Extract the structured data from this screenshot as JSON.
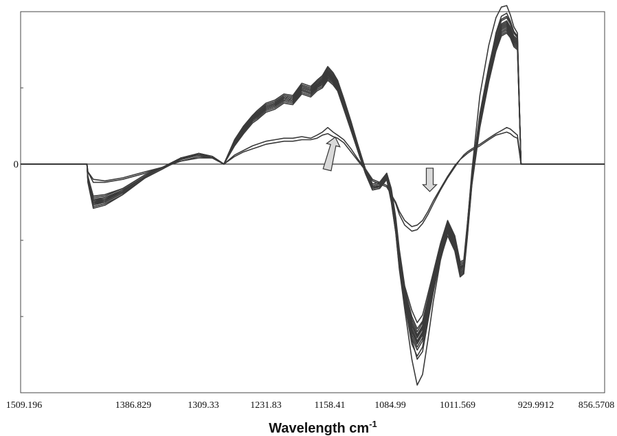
{
  "chart_data": {
    "type": "line",
    "title": "",
    "xlabel": "Wavelength cm",
    "xlabel_superscript": "-1",
    "ylabel": "",
    "x_reversed": true,
    "xlim": [
      1509.196,
      856.5708
    ],
    "ylim": [
      -1.5,
      1.0
    ],
    "x_tick_labels": [
      "1509.196",
      "1386.829",
      "1309.33",
      "1231.83",
      "1158.41",
      "1084.99",
      "1011.569",
      "929.9912",
      "856.5708"
    ],
    "y_tick_labels": [
      "0"
    ],
    "grid": false,
    "legend": "none",
    "line_color": "#3a3a3a",
    "baseline_color": "#333333",
    "annotations": [
      {
        "name": "arrow-up",
        "direction": "up",
        "x": 1160,
        "y": 0.12
      },
      {
        "name": "arrow-down",
        "direction": "down",
        "x": 1052,
        "y": -0.18
      }
    ],
    "profile_x": [
      1509.2,
      1435,
      1434,
      1428,
      1415,
      1395,
      1370,
      1350,
      1330,
      1310,
      1295,
      1282,
      1270,
      1260,
      1250,
      1245,
      1235,
      1225,
      1215,
      1205,
      1195,
      1185,
      1178,
      1172,
      1166,
      1160,
      1155,
      1148,
      1140,
      1132,
      1124,
      1116,
      1108,
      1100,
      1095,
      1090,
      1086,
      1080,
      1072,
      1066,
      1060,
      1054,
      1048,
      1040,
      1032,
      1024,
      1018,
      1014,
      1010,
      1005,
      996,
      986,
      978,
      972,
      966,
      962,
      958,
      954,
      950,
      856.6
    ],
    "series": [
      {
        "values": [
          0,
          0,
          -0.09,
          -0.26,
          -0.24,
          -0.18,
          -0.08,
          -0.02,
          0.04,
          0.07,
          0.05,
          0.0,
          0.15,
          0.23,
          0.3,
          0.32,
          0.37,
          0.39,
          0.43,
          0.42,
          0.5,
          0.48,
          0.52,
          0.55,
          0.6,
          0.56,
          0.52,
          0.4,
          0.25,
          0.1,
          -0.05,
          -0.15,
          -0.14,
          -0.08,
          -0.2,
          -0.4,
          -0.62,
          -0.86,
          -1.06,
          -1.14,
          -1.08,
          -0.92,
          -0.76,
          -0.55,
          -0.4,
          -0.5,
          -0.68,
          -0.66,
          -0.42,
          -0.1,
          0.3,
          0.6,
          0.8,
          0.9,
          0.92,
          0.88,
          0.82,
          0.8,
          0,
          0
        ]
      },
      {
        "values": [
          0,
          0,
          -0.1,
          -0.27,
          -0.25,
          -0.19,
          -0.09,
          -0.03,
          0.04,
          0.06,
          0.05,
          0.0,
          0.14,
          0.22,
          0.29,
          0.31,
          0.36,
          0.38,
          0.42,
          0.41,
          0.48,
          0.46,
          0.5,
          0.52,
          0.57,
          0.54,
          0.5,
          0.38,
          0.24,
          0.09,
          -0.05,
          -0.16,
          -0.15,
          -0.09,
          -0.22,
          -0.42,
          -0.64,
          -0.88,
          -1.08,
          -1.16,
          -1.1,
          -0.94,
          -0.78,
          -0.57,
          -0.42,
          -0.52,
          -0.69,
          -0.67,
          -0.44,
          -0.11,
          0.28,
          0.58,
          0.78,
          0.88,
          0.9,
          0.86,
          0.8,
          0.78,
          0,
          0
        ]
      },
      {
        "values": [
          0,
          0,
          -0.09,
          -0.25,
          -0.23,
          -0.18,
          -0.08,
          -0.02,
          0.03,
          0.07,
          0.05,
          0.0,
          0.15,
          0.24,
          0.31,
          0.33,
          0.38,
          0.4,
          0.44,
          0.43,
          0.51,
          0.49,
          0.53,
          0.56,
          0.61,
          0.57,
          0.53,
          0.41,
          0.26,
          0.11,
          -0.04,
          -0.14,
          -0.13,
          -0.07,
          -0.19,
          -0.38,
          -0.6,
          -0.84,
          -1.04,
          -1.12,
          -1.06,
          -0.9,
          -0.74,
          -0.54,
          -0.39,
          -0.49,
          -0.66,
          -0.65,
          -0.41,
          -0.09,
          0.31,
          0.61,
          0.81,
          0.91,
          0.93,
          0.89,
          0.83,
          0.81,
          0,
          0
        ]
      },
      {
        "values": [
          0,
          0,
          -0.11,
          -0.28,
          -0.26,
          -0.2,
          -0.09,
          -0.03,
          0.04,
          0.07,
          0.05,
          0.0,
          0.13,
          0.21,
          0.28,
          0.3,
          0.35,
          0.37,
          0.41,
          0.4,
          0.47,
          0.45,
          0.49,
          0.51,
          0.56,
          0.53,
          0.49,
          0.37,
          0.23,
          0.08,
          -0.06,
          -0.17,
          -0.16,
          -0.1,
          -0.24,
          -0.44,
          -0.66,
          -0.9,
          -1.12,
          -1.2,
          -1.14,
          -0.97,
          -0.8,
          -0.59,
          -0.44,
          -0.54,
          -0.71,
          -0.69,
          -0.46,
          -0.13,
          0.26,
          0.56,
          0.76,
          0.86,
          0.88,
          0.85,
          0.79,
          0.77,
          0,
          0
        ]
      },
      {
        "values": [
          0,
          0,
          -0.08,
          -0.22,
          -0.21,
          -0.16,
          -0.07,
          -0.02,
          0.04,
          0.07,
          0.05,
          0.0,
          0.15,
          0.24,
          0.31,
          0.34,
          0.39,
          0.41,
          0.45,
          0.44,
          0.52,
          0.5,
          0.54,
          0.57,
          0.62,
          0.58,
          0.54,
          0.42,
          0.27,
          0.12,
          -0.03,
          -0.13,
          -0.12,
          -0.06,
          -0.17,
          -0.36,
          -0.58,
          -0.82,
          -1.0,
          -1.08,
          -1.03,
          -0.88,
          -0.73,
          -0.53,
          -0.38,
          -0.48,
          -0.65,
          -0.64,
          -0.4,
          -0.08,
          0.32,
          0.62,
          0.82,
          0.92,
          0.94,
          0.9,
          0.84,
          0.82,
          0,
          0
        ]
      },
      {
        "values": [
          0,
          0,
          -0.1,
          -0.24,
          -0.23,
          -0.17,
          -0.08,
          -0.02,
          0.03,
          0.06,
          0.04,
          0.0,
          0.14,
          0.23,
          0.3,
          0.32,
          0.37,
          0.39,
          0.43,
          0.42,
          0.49,
          0.47,
          0.51,
          0.54,
          0.58,
          0.55,
          0.51,
          0.39,
          0.25,
          0.1,
          -0.05,
          -0.15,
          -0.14,
          -0.08,
          -0.21,
          -0.41,
          -0.63,
          -0.87,
          -1.1,
          -1.18,
          -1.12,
          -0.95,
          -0.79,
          -0.58,
          -0.43,
          -0.53,
          -0.7,
          -0.68,
          -0.45,
          -0.12,
          0.27,
          0.57,
          0.77,
          0.87,
          0.89,
          0.86,
          0.8,
          0.78,
          0,
          0
        ]
      },
      {
        "values": [
          0,
          0,
          -0.09,
          -0.23,
          -0.22,
          -0.17,
          -0.08,
          -0.02,
          0.04,
          0.07,
          0.05,
          0.0,
          0.16,
          0.25,
          0.32,
          0.34,
          0.39,
          0.41,
          0.45,
          0.44,
          0.52,
          0.5,
          0.55,
          0.58,
          0.63,
          0.59,
          0.55,
          0.42,
          0.27,
          0.11,
          -0.04,
          -0.14,
          -0.13,
          -0.07,
          -0.2,
          -0.4,
          -0.61,
          -0.85,
          -1.02,
          -1.1,
          -1.04,
          -0.89,
          -0.74,
          -0.54,
          -0.39,
          -0.49,
          -0.66,
          -0.65,
          -0.41,
          -0.09,
          0.32,
          0.63,
          0.84,
          0.94,
          0.96,
          0.92,
          0.86,
          0.83,
          0,
          0
        ]
      },
      {
        "values": [
          0,
          0,
          -0.11,
          -0.26,
          -0.24,
          -0.18,
          -0.08,
          -0.02,
          0.04,
          0.06,
          0.05,
          0.0,
          0.13,
          0.22,
          0.29,
          0.31,
          0.36,
          0.38,
          0.42,
          0.41,
          0.48,
          0.46,
          0.5,
          0.53,
          0.57,
          0.54,
          0.5,
          0.38,
          0.24,
          0.09,
          -0.05,
          -0.16,
          -0.15,
          -0.09,
          -0.23,
          -0.43,
          -0.65,
          -0.89,
          -1.14,
          -1.22,
          -1.16,
          -0.98,
          -0.81,
          -0.6,
          -0.45,
          -0.55,
          -0.72,
          -0.7,
          -0.47,
          -0.13,
          0.25,
          0.55,
          0.75,
          0.85,
          0.87,
          0.84,
          0.78,
          0.76,
          0,
          0
        ]
      },
      {
        "values": [
          0,
          0,
          -0.12,
          -0.29,
          -0.27,
          -0.2,
          -0.09,
          -0.03,
          0.03,
          0.06,
          0.04,
          0.0,
          0.12,
          0.2,
          0.27,
          0.29,
          0.34,
          0.36,
          0.4,
          0.39,
          0.46,
          0.44,
          0.48,
          0.5,
          0.55,
          0.52,
          0.48,
          0.36,
          0.22,
          0.08,
          -0.06,
          -0.17,
          -0.16,
          -0.1,
          -0.25,
          -0.45,
          -0.68,
          -0.92,
          -1.18,
          -1.26,
          -1.2,
          -1.01,
          -0.83,
          -0.62,
          -0.47,
          -0.57,
          -0.74,
          -0.72,
          -0.48,
          -0.14,
          0.24,
          0.54,
          0.74,
          0.84,
          0.86,
          0.83,
          0.77,
          0.75,
          0,
          0
        ]
      },
      {
        "values": [
          0,
          0,
          -0.08,
          -0.21,
          -0.2,
          -0.16,
          -0.07,
          -0.02,
          0.04,
          0.07,
          0.05,
          0.0,
          0.16,
          0.25,
          0.32,
          0.35,
          0.4,
          0.42,
          0.46,
          0.45,
          0.53,
          0.51,
          0.55,
          0.58,
          0.64,
          0.6,
          0.55,
          0.43,
          0.28,
          0.12,
          -0.03,
          -0.13,
          -0.12,
          -0.06,
          -0.16,
          -0.35,
          -0.56,
          -0.8,
          -0.96,
          -1.04,
          -0.99,
          -0.85,
          -0.71,
          -0.52,
          -0.37,
          -0.47,
          -0.64,
          -0.63,
          -0.39,
          -0.07,
          0.33,
          0.64,
          0.85,
          0.95,
          0.97,
          0.93,
          0.87,
          0.84,
          0,
          0
        ]
      },
      {
        "values": [
          0,
          0,
          -0.1,
          -0.25,
          -0.24,
          -0.18,
          -0.08,
          -0.02,
          0.04,
          0.07,
          0.05,
          0.0,
          0.14,
          0.23,
          0.3,
          0.33,
          0.38,
          0.4,
          0.44,
          0.43,
          0.5,
          0.48,
          0.52,
          0.55,
          0.6,
          0.56,
          0.52,
          0.4,
          0.25,
          0.1,
          -0.05,
          -0.15,
          -0.14,
          -0.08,
          -0.2,
          -0.39,
          -0.61,
          -0.86,
          -1.15,
          -1.28,
          -1.23,
          -1.03,
          -0.84,
          -0.61,
          -0.45,
          -0.56,
          -0.73,
          -0.71,
          -0.46,
          -0.12,
          0.29,
          0.62,
          0.86,
          0.97,
          0.99,
          0.94,
          0.87,
          0.84,
          0,
          0
        ]
      },
      {
        "values": [
          0,
          0,
          -0.09,
          -0.24,
          -0.22,
          -0.17,
          -0.08,
          -0.02,
          0.04,
          0.07,
          0.05,
          0.0,
          0.15,
          0.23,
          0.3,
          0.32,
          0.37,
          0.39,
          0.43,
          0.42,
          0.49,
          0.47,
          0.51,
          0.54,
          0.59,
          0.55,
          0.51,
          0.39,
          0.25,
          0.1,
          -0.05,
          -0.15,
          -0.14,
          -0.08,
          -0.21,
          -0.41,
          -0.63,
          -0.86,
          -1.08,
          -1.16,
          -1.1,
          -0.93,
          -0.77,
          -0.56,
          -0.41,
          -0.51,
          -0.68,
          -0.67,
          -0.43,
          -0.1,
          0.29,
          0.6,
          0.8,
          0.9,
          0.92,
          0.88,
          0.82,
          0.8,
          0,
          0
        ]
      },
      {
        "values": [
          0,
          0,
          -0.1,
          -0.26,
          -0.24,
          -0.18,
          -0.08,
          -0.02,
          0.04,
          0.07,
          0.05,
          0.0,
          0.15,
          0.24,
          0.31,
          0.33,
          0.38,
          0.4,
          0.44,
          0.43,
          0.51,
          0.49,
          0.53,
          0.56,
          0.61,
          0.57,
          0.53,
          0.41,
          0.26,
          0.11,
          -0.04,
          -0.15,
          -0.14,
          -0.08,
          -0.22,
          -0.42,
          -0.64,
          -0.88,
          -1.06,
          -1.13,
          -1.07,
          -0.91,
          -0.75,
          -0.55,
          -0.4,
          -0.5,
          -0.67,
          -0.66,
          -0.42,
          -0.1,
          0.3,
          0.61,
          0.81,
          0.91,
          0.93,
          0.89,
          0.83,
          0.81,
          0,
          0
        ]
      },
      {
        "values": [
          0,
          0,
          -0.09,
          -0.25,
          -0.23,
          -0.17,
          -0.08,
          -0.02,
          0.04,
          0.07,
          0.05,
          0.0,
          0.14,
          0.22,
          0.29,
          0.32,
          0.37,
          0.39,
          0.43,
          0.42,
          0.49,
          0.47,
          0.51,
          0.54,
          0.58,
          0.55,
          0.51,
          0.39,
          0.25,
          0.1,
          -0.05,
          -0.16,
          -0.15,
          -0.09,
          -0.21,
          -0.4,
          -0.62,
          -0.86,
          -1.04,
          -1.12,
          -1.06,
          -0.9,
          -0.75,
          -0.55,
          -0.4,
          -0.5,
          -0.67,
          -0.66,
          -0.42,
          -0.1,
          0.29,
          0.59,
          0.79,
          0.89,
          0.91,
          0.87,
          0.81,
          0.79,
          0,
          0
        ]
      },
      {
        "values": [
          0,
          0,
          -0.1,
          -0.26,
          -0.25,
          -0.19,
          -0.09,
          -0.03,
          0.04,
          0.06,
          0.05,
          0.0,
          0.14,
          0.23,
          0.3,
          0.32,
          0.37,
          0.39,
          0.43,
          0.42,
          0.5,
          0.48,
          0.52,
          0.55,
          0.59,
          0.56,
          0.52,
          0.4,
          0.25,
          0.1,
          -0.05,
          -0.15,
          -0.14,
          -0.08,
          -0.21,
          -0.41,
          -0.63,
          -0.87,
          -1.09,
          -1.17,
          -1.11,
          -0.94,
          -0.78,
          -0.57,
          -0.42,
          -0.52,
          -0.69,
          -0.67,
          -0.44,
          -0.11,
          0.28,
          0.59,
          0.79,
          0.89,
          0.91,
          0.87,
          0.81,
          0.79,
          0,
          0
        ]
      },
      {
        "values": [
          0,
          0,
          -0.05,
          -0.12,
          -0.12,
          -0.1,
          -0.06,
          -0.02,
          0.02,
          0.05,
          0.04,
          0.0,
          0.06,
          0.09,
          0.12,
          0.13,
          0.15,
          0.16,
          0.17,
          0.17,
          0.18,
          0.17,
          0.19,
          0.21,
          0.24,
          0.21,
          0.19,
          0.16,
          0.1,
          0.03,
          -0.03,
          -0.1,
          -0.12,
          -0.14,
          -0.2,
          -0.26,
          -0.33,
          -0.4,
          -0.44,
          -0.43,
          -0.39,
          -0.33,
          -0.26,
          -0.17,
          -0.09,
          -0.02,
          0.03,
          0.06,
          0.08,
          0.1,
          0.13,
          0.17,
          0.2,
          0.22,
          0.24,
          0.23,
          0.21,
          0.19,
          0,
          0
        ]
      },
      {
        "values": [
          0,
          0,
          -0.05,
          -0.1,
          -0.11,
          -0.09,
          -0.05,
          -0.02,
          0.02,
          0.04,
          0.04,
          0.0,
          0.05,
          0.08,
          0.1,
          0.11,
          0.13,
          0.14,
          0.15,
          0.15,
          0.16,
          0.16,
          0.17,
          0.19,
          0.2,
          0.18,
          0.17,
          0.14,
          0.08,
          0.02,
          -0.04,
          -0.11,
          -0.13,
          -0.15,
          -0.2,
          -0.25,
          -0.31,
          -0.37,
          -0.41,
          -0.4,
          -0.37,
          -0.31,
          -0.24,
          -0.16,
          -0.08,
          -0.01,
          0.03,
          0.05,
          0.07,
          0.09,
          0.12,
          0.16,
          0.19,
          0.2,
          0.21,
          0.2,
          0.18,
          0.17,
          0,
          0
        ]
      },
      {
        "values": [
          0,
          0,
          -0.09,
          -0.25,
          -0.24,
          -0.18,
          -0.08,
          -0.02,
          0.04,
          0.07,
          0.05,
          0.0,
          0.13,
          0.22,
          0.29,
          0.31,
          0.36,
          0.38,
          0.42,
          0.41,
          0.49,
          0.47,
          0.51,
          0.54,
          0.58,
          0.55,
          0.51,
          0.39,
          0.25,
          0.1,
          -0.05,
          -0.15,
          -0.15,
          -0.1,
          -0.24,
          -0.45,
          -0.69,
          -0.95,
          -1.28,
          -1.45,
          -1.38,
          -1.15,
          -0.9,
          -0.63,
          -0.45,
          -0.56,
          -0.73,
          -0.71,
          -0.4,
          -0.05,
          0.45,
          0.78,
          0.96,
          1.03,
          1.04,
          0.98,
          0.9,
          0.86,
          0,
          0
        ]
      }
    ]
  }
}
